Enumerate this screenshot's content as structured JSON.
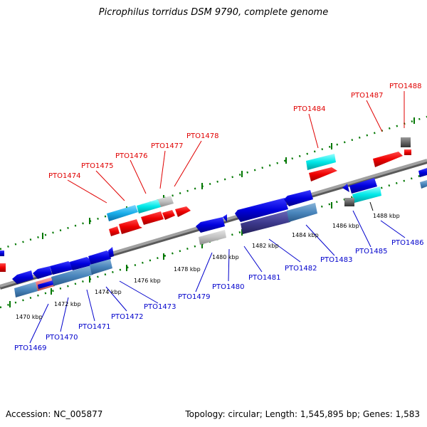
{
  "title": "Picrophilus torridus DSM 9790, complete genome",
  "footer": {
    "accession": "Accession: NC_005877",
    "info": "Topology: circular; Length: 1,545,895 bp; Genes: 1,583"
  },
  "kbp_labels": [
    "1470 kbp",
    "1472 kbp",
    "1474 kbp",
    "1476 kbp",
    "1478 kbp",
    "1480 kbp",
    "1482 kbp",
    "1484 kbp",
    "1486 kbp",
    "1488 kbp"
  ],
  "genes_top": [
    "PTO1474",
    "PTO1475",
    "PTO1476",
    "PTO1477",
    "PTO1478",
    "PTO1484",
    "PTO1487",
    "PTO1488"
  ],
  "genes_bottom": [
    "PTO1469",
    "PTO1470",
    "PTO1471",
    "PTO1472",
    "PTO1473",
    "PTO1479",
    "PTO1480",
    "PTO1481",
    "PTO1482",
    "PTO1483",
    "PTO1485",
    "PTO1486"
  ],
  "colors": {
    "forward_label": "#e00000",
    "reverse_label": "#0000cc",
    "backbone": "#8a8a8a",
    "tick": "#007700"
  }
}
